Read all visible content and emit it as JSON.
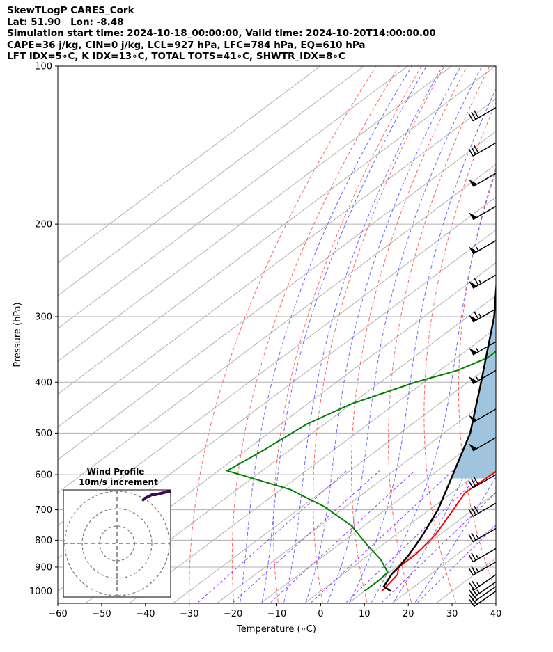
{
  "header": {
    "line1": "SkewTLogP CARES_Cork",
    "line2": "Lat: 51.90   Lon: -8.48",
    "line3": "Simulation start time: 2024-10-18_00:00:00, Valid time: 2024-10-20T14:00:00.00",
    "line4": "CAPE=36 j/kg, CIN=0 j/kg, LCL=927 hPa, LFC=784 hPa, EQ=610 hPa",
    "line5": "LFT IDX=5∘C, K IDX=13∘C, TOTAL TOTS=41∘C, SHWTR_IDX=8∘C"
  },
  "chart_data": {
    "type": "skewt-logp",
    "xlabel": "Temperature (∘C)",
    "ylabel": "Pressure (hPa)",
    "xlim": [
      -60,
      40
    ],
    "ylim": [
      1040,
      100
    ],
    "y_log": true,
    "grid": true,
    "x_ticks": [
      -60,
      -50,
      -40,
      -30,
      -20,
      -10,
      0,
      10,
      20,
      30,
      40
    ],
    "x_tick_labels": [
      "−60",
      "−50",
      "−40",
      "−30",
      "−20",
      "−10",
      "0",
      "10",
      "20",
      "30",
      "40"
    ],
    "y_ticks": [
      100,
      200,
      300,
      400,
      500,
      600,
      700,
      800,
      900,
      1000
    ],
    "y_tick_labels": [
      "100",
      "200",
      "300",
      "400",
      "500",
      "600",
      "700",
      "800",
      "900",
      "1000"
    ],
    "temperature": {
      "color": "#ff0000",
      "points": [
        [
          1000,
          14
        ],
        [
          930,
          12.5
        ],
        [
          900,
          10.5
        ],
        [
          850,
          10.5
        ],
        [
          780,
          9
        ],
        [
          700,
          5.5
        ],
        [
          650,
          3
        ],
        [
          600,
          3.5
        ],
        [
          560,
          4
        ],
        [
          500,
          3.5
        ],
        [
          460,
          3.5
        ],
        [
          420,
          4.5
        ],
        [
          400,
          5
        ],
        [
          370,
          5
        ],
        [
          330,
          4
        ],
        [
          290,
          1
        ],
        [
          250,
          -3
        ],
        [
          230,
          -4
        ],
        [
          215,
          -3
        ],
        [
          200,
          -1
        ],
        [
          185,
          2
        ],
        [
          170,
          4
        ],
        [
          155,
          4
        ],
        [
          140,
          6
        ],
        [
          125,
          10
        ],
        [
          110,
          13
        ],
        [
          100,
          15
        ]
      ]
    },
    "dewpoint": {
      "color": "#008000",
      "points": [
        [
          1000,
          10
        ],
        [
          950,
          10
        ],
        [
          920,
          9.5
        ],
        [
          870,
          4
        ],
        [
          820,
          -3
        ],
        [
          750,
          -13
        ],
        [
          690,
          -25
        ],
        [
          640,
          -38
        ],
        [
          590,
          -58
        ],
        [
          540,
          -56
        ],
        [
          480,
          -54
        ],
        [
          440,
          -50
        ],
        [
          400,
          -42
        ],
        [
          380,
          -36
        ],
        [
          360,
          -33
        ],
        [
          330,
          -33
        ],
        [
          310,
          -33
        ],
        [
          290,
          -31
        ],
        [
          270,
          -27
        ],
        [
          240,
          -26
        ],
        [
          210,
          -31
        ],
        [
          195,
          -38
        ],
        [
          180,
          -43
        ],
        [
          160,
          -37
        ],
        [
          140,
          -39
        ],
        [
          120,
          -37
        ],
        [
          100,
          -35
        ]
      ]
    },
    "parcel": {
      "color": "#000000",
      "points": [
        [
          1000,
          16
        ],
        [
          980,
          13
        ],
        [
          927,
          11
        ],
        [
          900,
          10.5
        ],
        [
          850,
          9
        ],
        [
          800,
          7
        ],
        [
          784,
          6.3
        ],
        [
          700,
          2
        ],
        [
          610,
          -4.5
        ],
        [
          500,
          -14
        ],
        [
          400,
          -27
        ],
        [
          300,
          -44
        ],
        [
          250,
          -56
        ],
        [
          200,
          -69
        ],
        [
          150,
          -88
        ],
        [
          100,
          -115
        ]
      ]
    },
    "cape_shading": "#a0c4de",
    "isotherms": [
      -160,
      -150,
      -140,
      -130,
      -120,
      -110,
      -100,
      -90,
      -80,
      -70,
      -60,
      -50,
      -40,
      -30,
      -20,
      -10,
      0,
      10,
      20,
      30,
      40
    ],
    "dry_adiabats_theta_c": [
      -30,
      -20,
      -10,
      0,
      10,
      20,
      30,
      40,
      50,
      60,
      70,
      80
    ],
    "moist_adiabats_start_c": [
      -15,
      -10,
      -5,
      0,
      5,
      10,
      15,
      20,
      25
    ],
    "mixing_ratios_gkg": [
      0.5,
      1,
      2,
      4,
      7,
      12,
      20
    ],
    "mixing_ratio_color": "#9933ff",
    "dry_adiabat_color": "#ff6666",
    "moist_adiabat_color": "#6666ff",
    "wind_barbs": [
      {
        "p": 1000,
        "speed_kt": 20,
        "dir_deg": 235
      },
      {
        "p": 980,
        "speed_kt": 20,
        "dir_deg": 235
      },
      {
        "p": 960,
        "speed_kt": 25,
        "dir_deg": 235
      },
      {
        "p": 930,
        "speed_kt": 25,
        "dir_deg": 235
      },
      {
        "p": 880,
        "speed_kt": 25,
        "dir_deg": 240
      },
      {
        "p": 830,
        "speed_kt": 25,
        "dir_deg": 240
      },
      {
        "p": 760,
        "speed_kt": 25,
        "dir_deg": 240
      },
      {
        "p": 680,
        "speed_kt": 30,
        "dir_deg": 240
      },
      {
        "p": 600,
        "speed_kt": 30,
        "dir_deg": 240
      },
      {
        "p": 510,
        "speed_kt": 50,
        "dir_deg": 240
      },
      {
        "p": 450,
        "speed_kt": 50,
        "dir_deg": 240
      },
      {
        "p": 380,
        "speed_kt": 55,
        "dir_deg": 240
      },
      {
        "p": 335,
        "speed_kt": 55,
        "dir_deg": 240
      },
      {
        "p": 290,
        "speed_kt": 65,
        "dir_deg": 240
      },
      {
        "p": 250,
        "speed_kt": 65,
        "dir_deg": 240
      },
      {
        "p": 215,
        "speed_kt": 55,
        "dir_deg": 240
      },
      {
        "p": 185,
        "speed_kt": 50,
        "dir_deg": 240
      },
      {
        "p": 160,
        "speed_kt": 50,
        "dir_deg": 240
      },
      {
        "p": 140,
        "speed_kt": 30,
        "dir_deg": 240
      },
      {
        "p": 120,
        "speed_kt": 30,
        "dir_deg": 240
      }
    ],
    "hodograph": {
      "title_line1": "Wind Profile",
      "title_line2": "10m/s increment",
      "ring_step_ms": 10,
      "rings": 3,
      "trace_color": "#3d0b5c",
      "top_color": "#ffee00",
      "trace_uv": [
        [
          15,
          25
        ],
        [
          16,
          26
        ],
        [
          18,
          27
        ],
        [
          20,
          28
        ],
        [
          22,
          28
        ],
        [
          24,
          28.5
        ],
        [
          26,
          29
        ],
        [
          28,
          29.5
        ],
        [
          30,
          30
        ],
        [
          31,
          30
        ],
        [
          32,
          29.5
        ],
        [
          33,
          29
        ]
      ],
      "top_uv": [
        [
          33,
          31
        ],
        [
          34,
          32.5
        ]
      ]
    }
  }
}
